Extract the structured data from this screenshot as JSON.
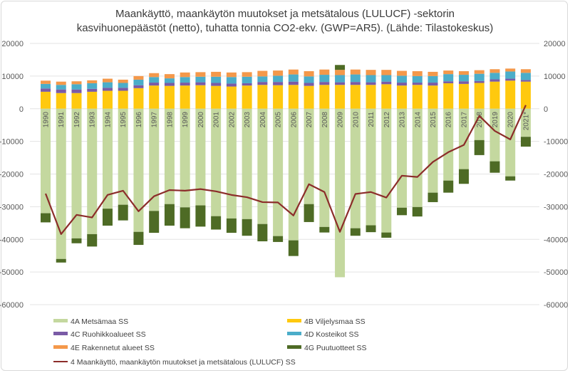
{
  "chart_data": {
    "type": "bar",
    "stacked": true,
    "title": "Maankäyttö, maankäytön muutokset ja metsätalous (LULUCF) -sektorin kasvihuonepäästöt (netto), tuhatta tonnia CO2-ekv. (GWP=AR5). (Lähde: Tilastokeskus)",
    "title_lines": [
      "Maankäyttö, maankäytön muutokset ja metsätalous (LULUCF) -sektorin",
      "kasvihuonepäästöt (netto), tuhatta tonnia CO2-ekv. (GWP=AR5). (Lähde: Tilastokeskus)"
    ],
    "xlabel": "",
    "ylabel": "",
    "ylim": [
      -60000,
      20000
    ],
    "yticks": [
      20000,
      10000,
      0,
      -10000,
      -20000,
      -30000,
      -40000,
      -50000,
      -60000
    ],
    "secondary_axis": true,
    "grid": true,
    "legend_position": "bottom",
    "categories": [
      "1990",
      "1991",
      "1992",
      "1993",
      "1994",
      "1995",
      "1996",
      "1997",
      "1998",
      "1999",
      "2000",
      "2001",
      "2002",
      "2003",
      "2004",
      "2005",
      "2006",
      "2007",
      "2008",
      "2009",
      "2010",
      "2011",
      "2012",
      "2013",
      "2014",
      "2015",
      "2016",
      "2017",
      "2018",
      "2019",
      "2020",
      "2021*"
    ],
    "series": [
      {
        "name": "4A Metsämaa SS",
        "type": "bar",
        "color": "#c4d89f",
        "values": [
          -32000,
          -46000,
          -39700,
          -38400,
          -30600,
          -29400,
          -37700,
          -31300,
          -29200,
          -30200,
          -29600,
          -32900,
          -33600,
          -33800,
          -35300,
          -39000,
          -40300,
          -29200,
          -36200,
          -51600,
          -36600,
          -35700,
          -37900,
          -30300,
          -30100,
          -25700,
          -22000,
          -18500,
          -9600,
          -16100,
          -20700,
          -8600
        ]
      },
      {
        "name": "4B  Viljelysmaa SS",
        "type": "bar",
        "color": "#ffc90e",
        "values": [
          5200,
          4800,
          4800,
          5200,
          5500,
          5500,
          6300,
          7100,
          7000,
          7100,
          7200,
          7000,
          6800,
          7100,
          7300,
          7200,
          7300,
          7000,
          7300,
          7300,
          7300,
          7300,
          7500,
          7100,
          7300,
          7100,
          7800,
          7600,
          7900,
          8300,
          8600,
          8300
        ]
      },
      {
        "name": "4C Ruohikkoalueet SS",
        "type": "bar",
        "color": "#7a5ba6",
        "values": [
          1000,
          1100,
          1100,
          900,
          900,
          900,
          900,
          900,
          900,
          900,
          900,
          900,
          900,
          700,
          900,
          1000,
          1000,
          900,
          900,
          800,
          900,
          800,
          800,
          900,
          700,
          900,
          600,
          800,
          600,
          700,
          600,
          500
        ]
      },
      {
        "name": "4D Kosteikot SS",
        "type": "bar",
        "color": "#4badc9",
        "values": [
          1400,
          1400,
          1600,
          1700,
          1700,
          1500,
          1700,
          1700,
          1400,
          1700,
          1700,
          1900,
          2000,
          2000,
          1700,
          1900,
          2200,
          2000,
          2200,
          2200,
          2300,
          2200,
          2000,
          2100,
          2000,
          2000,
          2200,
          2000,
          2200,
          2000,
          2200,
          2200
        ]
      },
      {
        "name": "4E Rakennetut alueet SS",
        "type": "bar",
        "color": "#f4984a",
        "values": [
          1000,
          1000,
          900,
          900,
          1100,
          1000,
          1100,
          1200,
          1300,
          1400,
          1400,
          1500,
          1400,
          1400,
          1700,
          1600,
          1500,
          1600,
          1600,
          1600,
          1500,
          1600,
          1600,
          1500,
          1500,
          1300,
          1100,
          1100,
          1100,
          1100,
          900,
          1100
        ]
      },
      {
        "name": "4G Puutuotteet SS",
        "type": "bar",
        "color": "#4e6b25",
        "values": [
          -2800,
          -1100,
          -1500,
          -3800,
          -5200,
          -4800,
          -4000,
          -6700,
          -6600,
          -6400,
          -6500,
          -4100,
          -4400,
          -5100,
          -5300,
          -1800,
          -4800,
          -5500,
          -1700,
          1500,
          -2300,
          -2100,
          -1600,
          -2300,
          -2900,
          -2900,
          -3700,
          -4500,
          -4600,
          -3500,
          -1300,
          -3000
        ]
      },
      {
        "name": "4 Maankäyttö, maankäytön muutokset ja metsätalous (LULUCF) SS",
        "type": "line",
        "color": "#8c2d2a",
        "values": [
          -26000,
          -38400,
          -32500,
          -33300,
          -26400,
          -25100,
          -31400,
          -26800,
          -24900,
          -25100,
          -24600,
          -25300,
          -26400,
          -27100,
          -28600,
          -28700,
          -32700,
          -23100,
          -25500,
          -37700,
          -26100,
          -25500,
          -27200,
          -20500,
          -20900,
          -16300,
          -13300,
          -11100,
          -2200,
          -6800,
          -9400,
          1100
        ]
      }
    ]
  }
}
